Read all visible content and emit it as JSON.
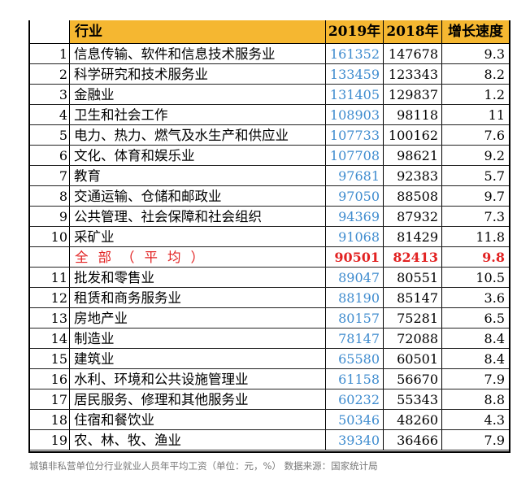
{
  "header": {
    "industry": "行业",
    "y2019": "2019年",
    "y2018": "2018年",
    "growth": "增长速度"
  },
  "rows": [
    {
      "idx": "1",
      "name": "信息传输、软件和信息技术服务业",
      "y2019": "161352",
      "y2018": "147678",
      "growth": "9.3"
    },
    {
      "idx": "2",
      "name": "科学研究和技术服务业",
      "y2019": "133459",
      "y2018": "123343",
      "growth": "8.2"
    },
    {
      "idx": "3",
      "name": "金融业",
      "y2019": "131405",
      "y2018": "129837",
      "growth": "1.2"
    },
    {
      "idx": "4",
      "name": "卫生和社会工作",
      "y2019": "108903",
      "y2018": "98118",
      "growth": "11"
    },
    {
      "idx": "5",
      "name": "电力、热力、燃气及水生产和供应业",
      "y2019": "107733",
      "y2018": "100162",
      "growth": "7.6"
    },
    {
      "idx": "6",
      "name": "文化、体育和娱乐业",
      "y2019": "107708",
      "y2018": "98621",
      "growth": "9.2"
    },
    {
      "idx": "7",
      "name": "教育",
      "y2019": "97681",
      "y2018": "92383",
      "growth": "5.7"
    },
    {
      "idx": "8",
      "name": "交通运输、仓储和邮政业",
      "y2019": "97050",
      "y2018": "88508",
      "growth": "9.7"
    },
    {
      "idx": "9",
      "name": "公共管理、社会保障和社会组织",
      "y2019": "94369",
      "y2018": "87932",
      "growth": "7.3"
    },
    {
      "idx": "10",
      "name": "采矿业",
      "y2019": "91068",
      "y2018": "81429",
      "growth": "11.8"
    },
    {
      "idx": "",
      "name": "全部（平均）",
      "y2019": "90501",
      "y2018": "82413",
      "growth": "9.8"
    },
    {
      "idx": "11",
      "name": "批发和零售业",
      "y2019": "89047",
      "y2018": "80551",
      "growth": "10.5"
    },
    {
      "idx": "12",
      "name": "租赁和商务服务业",
      "y2019": "88190",
      "y2018": "85147",
      "growth": "3.6"
    },
    {
      "idx": "13",
      "name": "房地产业",
      "y2019": "80157",
      "y2018": "75281",
      "growth": "6.5"
    },
    {
      "idx": "14",
      "name": "制造业",
      "y2019": "78147",
      "y2018": "72088",
      "growth": "8.4"
    },
    {
      "idx": "15",
      "name": "建筑业",
      "y2019": "65580",
      "y2018": "60501",
      "growth": "8.4"
    },
    {
      "idx": "16",
      "name": "水利、环境和公共设施管理业",
      "y2019": "61158",
      "y2018": "56670",
      "growth": "7.9"
    },
    {
      "idx": "17",
      "name": "居民服务、修理和其他服务业",
      "y2019": "60232",
      "y2018": "55343",
      "growth": "8.8"
    },
    {
      "idx": "18",
      "name": "住宿和餐饮业",
      "y2019": "50346",
      "y2018": "48260",
      "growth": "4.3"
    },
    {
      "idx": "19",
      "name": "农、林、牧、渔业",
      "y2019": "39340",
      "y2018": "36466",
      "growth": "7.9"
    }
  ],
  "caption": "城镇非私营单位分行业就业人员年平均工资（单位：元，%）  数据来源：国家统计局",
  "colors": {
    "header_bg": "#f5b731",
    "y2019_text": "#3f8ccf",
    "average_text": "#e22222"
  }
}
